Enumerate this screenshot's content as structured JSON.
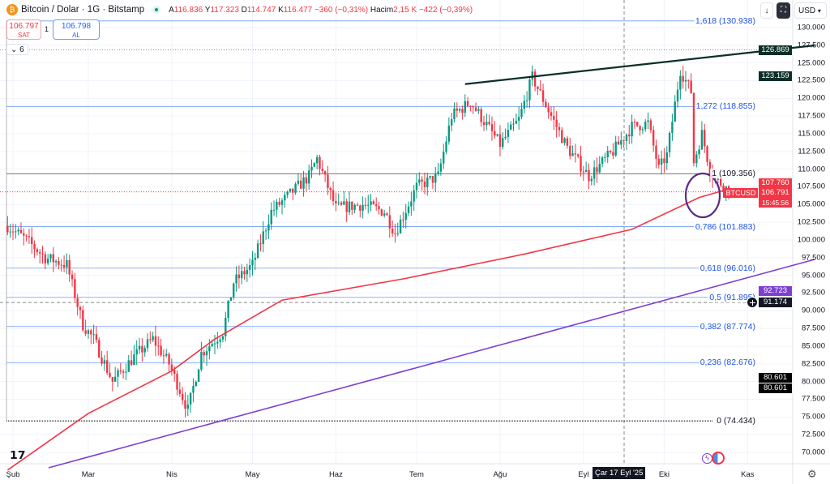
{
  "header": {
    "title": "Bitcoin / Dolar · 1G · Bitstamp",
    "o_label": "A",
    "o": "116.836",
    "h_label": "Y",
    "h": "117.323",
    "l_label": "D",
    "l": "114.747",
    "c_label": "K",
    "c": "116.477",
    "change": "−360 (−0,31%)",
    "vol_label": "Hacim",
    "vol": "2,15 K",
    "vol_change": "−422 (−0,39%)"
  },
  "trade": {
    "sell_price": "106.797",
    "sell_label": "SAT",
    "qty": "1",
    "buy_price": "106.798",
    "buy_label": "AL"
  },
  "indicators_toggle": "6",
  "currency": "USD",
  "price_tags": {
    "trend_top": "126.869",
    "trend_low": "123.159",
    "current_high": "107.760",
    "symbol": "BTCUSD",
    "current": "106.791",
    "countdown": "15:45:56",
    "purple": "92.723",
    "cursor": "91.174",
    "low1": "80.601",
    "low2": "80.601"
  },
  "crosshair_date": "Çar 17 Eyl '25",
  "colors": {
    "up": "#089981",
    "down": "#f23645",
    "ma": "#f23645",
    "fib": "#6d9cf7",
    "trend": "#0b2e28",
    "support": "#7e3fd1"
  },
  "chart_data": {
    "type": "candlestick",
    "title": "Bitcoin / Dolar · 1G · Bitstamp",
    "ylim": [
      68500,
      132500
    ],
    "y_ticks": [
      "130.000",
      "127.500",
      "125.000",
      "122.500",
      "120.000",
      "117.500",
      "115.000",
      "112.500",
      "110.000",
      "107.500",
      "105.000",
      "102.500",
      "100.000",
      "97.500",
      "95.000",
      "92.500",
      "90.000",
      "87.500",
      "85.000",
      "82.500",
      "80.000",
      "77.500",
      "75.000",
      "72.500",
      "70.000"
    ],
    "x_ticks": [
      {
        "label": "Şub",
        "day": 0
      },
      {
        "label": "Mar",
        "day": 28
      },
      {
        "label": "Nis",
        "day": 59
      },
      {
        "label": "May",
        "day": 89
      },
      {
        "label": "Haz",
        "day": 120
      },
      {
        "label": "Tem",
        "day": 150
      },
      {
        "label": "Ağu",
        "day": 181
      },
      {
        "label": "Eyl",
        "day": 212
      },
      {
        "label": "Eki",
        "day": 242
      },
      {
        "label": "Kas",
        "day": 273
      }
    ],
    "price_path": [
      [
        -2,
        102000
      ],
      [
        5,
        100000
      ],
      [
        12,
        97500
      ],
      [
        20,
        96500
      ],
      [
        26,
        88000
      ],
      [
        30,
        86000
      ],
      [
        37,
        80000
      ],
      [
        45,
        83500
      ],
      [
        52,
        86000
      ],
      [
        58,
        82500
      ],
      [
        65,
        76000
      ],
      [
        70,
        84000
      ],
      [
        78,
        87000
      ],
      [
        82,
        94000
      ],
      [
        89,
        96500
      ],
      [
        96,
        104000
      ],
      [
        110,
        109000
      ],
      [
        113,
        111500
      ],
      [
        120,
        104500
      ],
      [
        130,
        105000
      ],
      [
        138,
        104000
      ],
      [
        142,
        101000
      ],
      [
        150,
        107500
      ],
      [
        158,
        109000
      ],
      [
        163,
        117500
      ],
      [
        170,
        119500
      ],
      [
        181,
        113500
      ],
      [
        188,
        117000
      ],
      [
        193,
        123000
      ],
      [
        200,
        117500
      ],
      [
        206,
        113000
      ],
      [
        214,
        109000
      ],
      [
        223,
        112500
      ],
      [
        230,
        116000
      ],
      [
        236,
        116500
      ],
      [
        240,
        110000
      ],
      [
        243,
        112000
      ],
      [
        248,
        124000
      ],
      [
        252,
        121000
      ],
      [
        253,
        111000
      ],
      [
        256,
        115000
      ],
      [
        259,
        110000
      ],
      [
        261,
        108500
      ],
      [
        264,
        107800
      ],
      [
        266,
        106800
      ]
    ],
    "ma200": [
      [
        -2,
        67500
      ],
      [
        28,
        75500
      ],
      [
        59,
        81500
      ],
      [
        75,
        86000
      ],
      [
        100,
        91500
      ],
      [
        145,
        94500
      ],
      [
        190,
        98000
      ],
      [
        230,
        101500
      ],
      [
        255,
        106000
      ],
      [
        266,
        107200
      ]
    ],
    "fib": [
      {
        "level": "1,618",
        "price": "130.938",
        "v": 130938
      },
      {
        "level": "1,272",
        "price": "118.855",
        "v": 118855
      },
      {
        "level": "1",
        "price": "109.356",
        "v": 109356
      },
      {
        "level": "0,786",
        "price": "101.883",
        "v": 101883
      },
      {
        "level": "0,618",
        "price": "96.016",
        "v": 96016
      },
      {
        "level": "0,5",
        "price": "91.895",
        "v": 91895
      },
      {
        "level": "0,382",
        "price": "87.774",
        "v": 87774
      },
      {
        "level": "0,236",
        "price": "82.676",
        "v": 82676
      },
      {
        "level": "0",
        "price": "74.434",
        "v": 74434
      }
    ],
    "resistance_line": [
      [
        168,
        123159
      ],
      [
        283,
        126869
      ]
    ],
    "support_line": [
      [
        15,
        67000
      ],
      [
        283,
        97500
      ]
    ],
    "current_price": 106791,
    "cursor_price": 91174
  }
}
